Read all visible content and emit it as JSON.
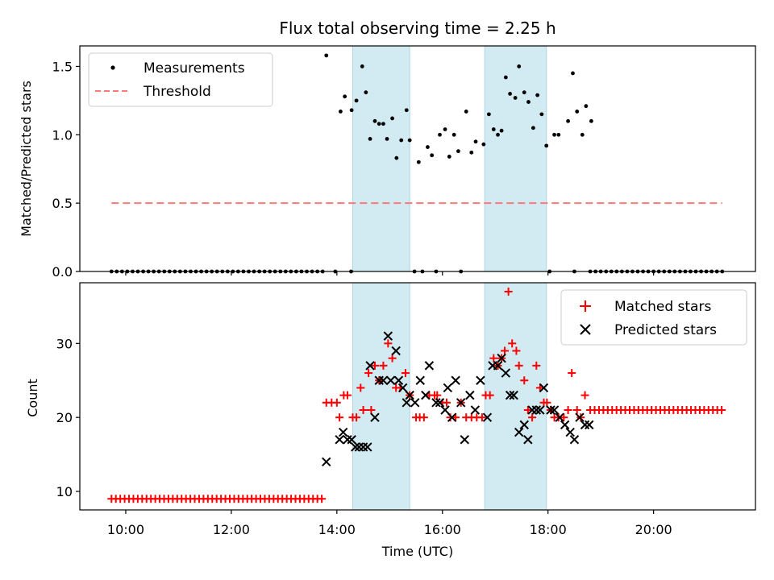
{
  "figure": {
    "title": "Flux total observing time = 2.25 h",
    "xlabel": "Time (UTC)",
    "x_tick_labels": [
      "10:00",
      "12:00",
      "14:00",
      "16:00",
      "18:00",
      "20:00"
    ],
    "x_ticks_hours": [
      10,
      12,
      14,
      16,
      18,
      20
    ],
    "xlim_hours": [
      9.13,
      21.93
    ],
    "shaded_intervals_hours": [
      [
        14.3,
        15.38
      ],
      [
        16.8,
        17.97
      ]
    ],
    "shade_color": "#add8e6"
  },
  "chart_data": [
    {
      "type": "scatter",
      "name": "ratio-panel",
      "ylabel": "Matched/Predicted stars",
      "ylim": [
        0,
        1.65
      ],
      "y_ticks": [
        0.0,
        0.5,
        1.0,
        1.5
      ],
      "y_tick_labels": [
        "0.0",
        "0.5",
        "1.0",
        "1.5"
      ],
      "legend": {
        "position": "upper left",
        "entries": [
          {
            "label": "Measurements",
            "marker": "dot",
            "color": "#000000"
          },
          {
            "label": "Threshold",
            "marker": "dashed-line",
            "color": "#ff7777"
          }
        ]
      },
      "threshold": {
        "y": 0.5,
        "x_range_hours": [
          9.73,
          21.3
        ],
        "color": "#ff7777"
      },
      "measurements": {
        "color": "#000000",
        "x_zero_start": 9.73,
        "x_zero_end": 13.73,
        "x_zero_step": 0.1,
        "x_zero_end2_start": 18.8,
        "x_zero_end2_end": 21.3,
        "extra_zero_x": [
          13.97,
          14.27,
          15.47,
          15.62,
          15.88,
          16.35,
          18.03,
          18.5
        ],
        "points": [
          [
            13.8,
            1.58
          ],
          [
            14.07,
            1.17
          ],
          [
            14.15,
            1.28
          ],
          [
            14.28,
            1.18
          ],
          [
            14.37,
            1.25
          ],
          [
            14.48,
            1.5
          ],
          [
            14.55,
            1.31
          ],
          [
            14.63,
            0.97
          ],
          [
            14.72,
            1.1
          ],
          [
            14.8,
            1.08
          ],
          [
            14.88,
            1.08
          ],
          [
            14.95,
            0.97
          ],
          [
            15.05,
            1.12
          ],
          [
            15.13,
            0.83
          ],
          [
            15.22,
            0.96
          ],
          [
            15.32,
            1.18
          ],
          [
            15.38,
            0.96
          ],
          [
            15.55,
            0.8
          ],
          [
            15.72,
            0.91
          ],
          [
            15.8,
            0.85
          ],
          [
            15.95,
            1.0
          ],
          [
            16.05,
            1.04
          ],
          [
            16.13,
            0.84
          ],
          [
            16.22,
            1.0
          ],
          [
            16.3,
            0.88
          ],
          [
            16.45,
            1.17
          ],
          [
            16.55,
            0.87
          ],
          [
            16.63,
            0.95
          ],
          [
            16.78,
            0.93
          ],
          [
            16.88,
            1.15
          ],
          [
            16.97,
            1.04
          ],
          [
            17.05,
            1.0
          ],
          [
            17.12,
            1.03
          ],
          [
            17.2,
            1.42
          ],
          [
            17.28,
            1.3
          ],
          [
            17.38,
            1.27
          ],
          [
            17.45,
            1.5
          ],
          [
            17.55,
            1.31
          ],
          [
            17.63,
            1.24
          ],
          [
            17.72,
            1.05
          ],
          [
            17.8,
            1.29
          ],
          [
            17.88,
            1.15
          ],
          [
            17.97,
            0.92
          ],
          [
            18.12,
            1.0
          ],
          [
            18.2,
            1.0
          ],
          [
            18.38,
            1.1
          ],
          [
            18.47,
            1.45
          ],
          [
            18.55,
            1.17
          ],
          [
            18.65,
            1.0
          ],
          [
            18.72,
            1.21
          ],
          [
            18.82,
            1.1
          ]
        ]
      }
    },
    {
      "type": "scatter",
      "name": "count-panel",
      "ylabel": "Count",
      "ylim": [
        7.5,
        38.2
      ],
      "y_ticks": [
        10,
        20,
        30
      ],
      "y_tick_labels": [
        "10",
        "20",
        "30"
      ],
      "legend": {
        "position": "upper right",
        "entries": [
          {
            "label": "Matched stars",
            "marker": "plus",
            "color": "#ff0000"
          },
          {
            "label": "Predicted stars",
            "marker": "x",
            "color": "#000000"
          }
        ]
      },
      "matched": {
        "color": "#ff0000",
        "const_runs": [
          {
            "x_start": 9.73,
            "x_end": 13.73,
            "step": 0.083,
            "y": 9
          },
          {
            "x_start": 18.8,
            "x_end": 21.3,
            "step": 0.083,
            "y": 21
          }
        ],
        "points": [
          [
            13.8,
            22
          ],
          [
            13.9,
            22
          ],
          [
            14.0,
            22
          ],
          [
            14.05,
            20
          ],
          [
            14.13,
            23
          ],
          [
            14.2,
            23
          ],
          [
            14.3,
            20
          ],
          [
            14.37,
            20
          ],
          [
            14.45,
            24
          ],
          [
            14.5,
            21
          ],
          [
            14.6,
            26
          ],
          [
            14.65,
            21
          ],
          [
            14.72,
            27
          ],
          [
            14.8,
            25
          ],
          [
            14.88,
            27
          ],
          [
            14.97,
            30
          ],
          [
            15.05,
            28
          ],
          [
            15.12,
            24
          ],
          [
            15.2,
            24
          ],
          [
            15.3,
            26
          ],
          [
            15.38,
            23
          ],
          [
            15.5,
            20
          ],
          [
            15.57,
            20
          ],
          [
            15.65,
            20
          ],
          [
            15.75,
            23
          ],
          [
            15.85,
            23
          ],
          [
            15.9,
            23
          ],
          [
            16.0,
            22
          ],
          [
            16.08,
            22
          ],
          [
            16.15,
            20
          ],
          [
            16.25,
            20
          ],
          [
            16.35,
            22
          ],
          [
            16.45,
            20
          ],
          [
            16.55,
            20
          ],
          [
            16.65,
            20
          ],
          [
            16.75,
            20
          ],
          [
            16.82,
            23
          ],
          [
            16.9,
            23
          ],
          [
            16.97,
            28
          ],
          [
            17.05,
            27
          ],
          [
            17.12,
            28
          ],
          [
            17.18,
            29
          ],
          [
            17.25,
            37
          ],
          [
            17.32,
            30
          ],
          [
            17.4,
            29
          ],
          [
            17.45,
            27
          ],
          [
            17.55,
            25
          ],
          [
            17.62,
            21
          ],
          [
            17.7,
            20
          ],
          [
            17.78,
            27
          ],
          [
            17.85,
            24
          ],
          [
            17.92,
            22
          ],
          [
            17.98,
            22
          ],
          [
            18.05,
            21
          ],
          [
            18.12,
            20
          ],
          [
            18.2,
            20
          ],
          [
            18.3,
            20
          ],
          [
            18.38,
            21
          ],
          [
            18.45,
            26
          ],
          [
            18.55,
            21
          ],
          [
            18.62,
            20
          ],
          [
            18.7,
            23
          ]
        ]
      },
      "predicted": {
        "color": "#000000",
        "points": [
          [
            13.8,
            14
          ],
          [
            14.05,
            17
          ],
          [
            14.12,
            18
          ],
          [
            14.2,
            17
          ],
          [
            14.28,
            17
          ],
          [
            14.35,
            16
          ],
          [
            14.42,
            16
          ],
          [
            14.5,
            16
          ],
          [
            14.58,
            16
          ],
          [
            14.63,
            27
          ],
          [
            14.72,
            20
          ],
          [
            14.8,
            25
          ],
          [
            14.88,
            25
          ],
          [
            14.97,
            31
          ],
          [
            15.02,
            25
          ],
          [
            15.12,
            29
          ],
          [
            15.17,
            25
          ],
          [
            15.25,
            24
          ],
          [
            15.32,
            22
          ],
          [
            15.38,
            23
          ],
          [
            15.48,
            22
          ],
          [
            15.58,
            25
          ],
          [
            15.68,
            23
          ],
          [
            15.75,
            27
          ],
          [
            15.88,
            22
          ],
          [
            15.95,
            22
          ],
          [
            16.05,
            21
          ],
          [
            16.1,
            24
          ],
          [
            16.18,
            20
          ],
          [
            16.25,
            25
          ],
          [
            16.35,
            22
          ],
          [
            16.42,
            17
          ],
          [
            16.52,
            23
          ],
          [
            16.62,
            21
          ],
          [
            16.72,
            25
          ],
          [
            16.85,
            20
          ],
          [
            16.95,
            27
          ],
          [
            17.05,
            27
          ],
          [
            17.12,
            28
          ],
          [
            17.2,
            26
          ],
          [
            17.28,
            23
          ],
          [
            17.35,
            23
          ],
          [
            17.45,
            18
          ],
          [
            17.55,
            19
          ],
          [
            17.62,
            17
          ],
          [
            17.7,
            21
          ],
          [
            17.78,
            21
          ],
          [
            17.85,
            21
          ],
          [
            17.92,
            24
          ],
          [
            18.05,
            21
          ],
          [
            18.12,
            21
          ],
          [
            18.22,
            20
          ],
          [
            18.32,
            19
          ],
          [
            18.42,
            18
          ],
          [
            18.5,
            17
          ],
          [
            18.6,
            20
          ],
          [
            18.7,
            19
          ],
          [
            18.78,
            19
          ]
        ]
      }
    }
  ]
}
